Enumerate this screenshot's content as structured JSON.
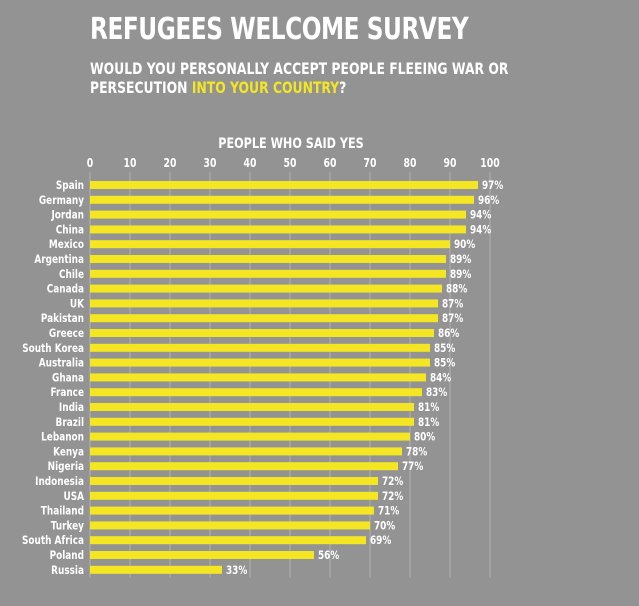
{
  "title": "REFUGEES WELCOME SURVEY",
  "subtitle": {
    "line1": "WOULD YOU PERSONALLY ACCEPT PEOPLE FLEEING WAR OR",
    "line2_pre": "PERSECUTION ",
    "line2_highlight": "INTO YOUR COUNTRY",
    "line2_post": "?"
  },
  "colors": {
    "background": "#939393",
    "bar": "#f4e623",
    "grid": "#b0b0b0",
    "text": "#ffffff"
  },
  "chart_data": {
    "type": "bar",
    "orientation": "horizontal",
    "title": "PEOPLE WHO SAID YES",
    "xlabel": "",
    "ylabel": "",
    "xlim": [
      0,
      100
    ],
    "xticks": [
      0,
      10,
      20,
      30,
      40,
      50,
      60,
      70,
      80,
      90,
      100
    ],
    "grid": true,
    "value_suffix": "%",
    "categories": [
      "Spain",
      "Germany",
      "Jordan",
      "China",
      "Mexico",
      "Argentina",
      "Chile",
      "Canada",
      "UK",
      "Pakistan",
      "Greece",
      "South Korea",
      "Australia",
      "Ghana",
      "France",
      "India",
      "Brazil",
      "Lebanon",
      "Kenya",
      "Nigeria",
      "Indonesia",
      "USA",
      "Thailand",
      "Turkey",
      "South Africa",
      "Poland",
      "Russia"
    ],
    "values": [
      97,
      96,
      94,
      94,
      90,
      89,
      89,
      88,
      87,
      87,
      86,
      85,
      85,
      84,
      83,
      81,
      81,
      80,
      78,
      77,
      72,
      72,
      71,
      70,
      69,
      56,
      33
    ]
  }
}
